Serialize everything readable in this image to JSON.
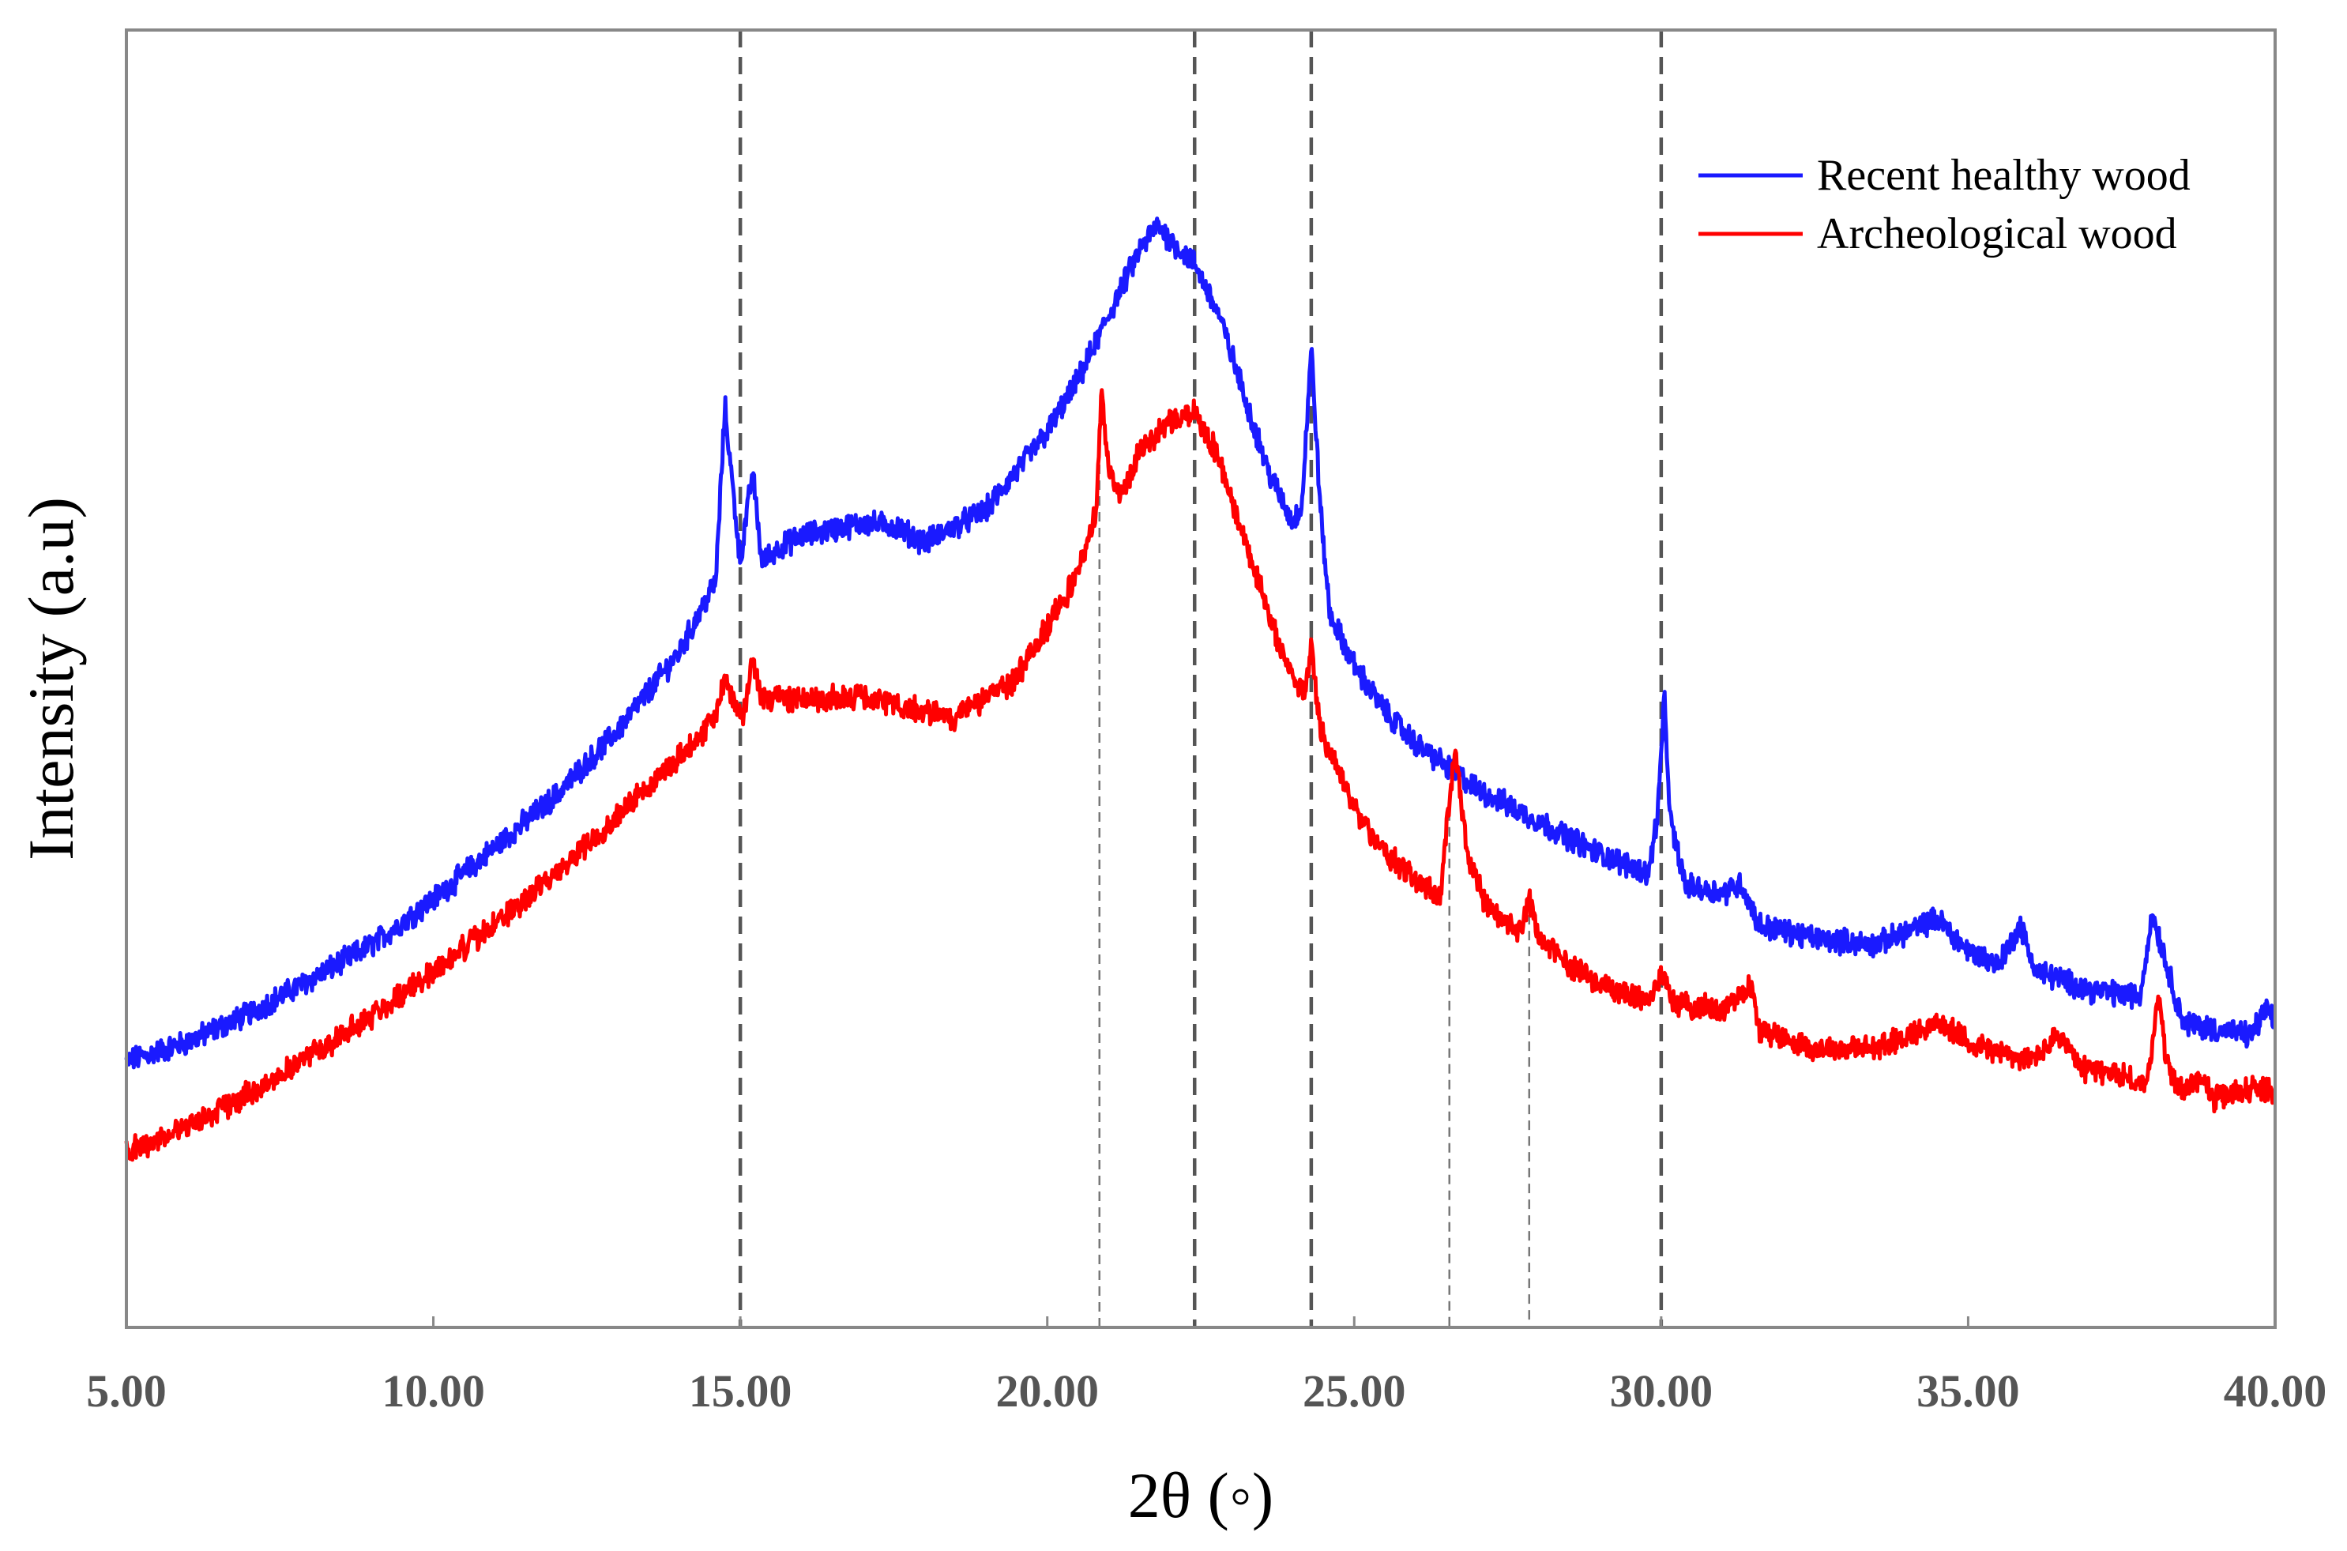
{
  "chart_data": {
    "type": "line",
    "title": "",
    "xlabel": "2θ (◦)",
    "ylabel": "Intensity (a.u)",
    "xlim": [
      5,
      40
    ],
    "ylim": [
      0,
      100
    ],
    "y_ticks_shown": false,
    "grid": false,
    "legend_position": "top-right",
    "x_ticks": [
      "5.00",
      "10.00",
      "15.00",
      "20.00",
      "25.00",
      "30.00",
      "35.00",
      "40.00"
    ],
    "x_tick_values": [
      5,
      10,
      15,
      20,
      25,
      30,
      35,
      40
    ],
    "reference_lines_major": [
      15.0,
      22.4,
      24.3,
      30.0
    ],
    "reference_lines_minor": [
      20.85,
      26.55,
      27.85
    ],
    "series": [
      {
        "name": "Recent healthy wood",
        "color": "#1a1aff",
        "points": [
          [
            5.0,
            20.5
          ],
          [
            6.0,
            22.0
          ],
          [
            7.0,
            24.2
          ],
          [
            8.0,
            26.8
          ],
          [
            9.0,
            29.5
          ],
          [
            10.0,
            33.0
          ],
          [
            11.0,
            37.0
          ],
          [
            12.0,
            41.0
          ],
          [
            13.0,
            46.0
          ],
          [
            14.0,
            52.0
          ],
          [
            14.6,
            57.5
          ],
          [
            14.75,
            71.0
          ],
          [
            14.85,
            66.0
          ],
          [
            15.0,
            59.0
          ],
          [
            15.2,
            66.0
          ],
          [
            15.35,
            59.0
          ],
          [
            15.6,
            60.0
          ],
          [
            16.0,
            61.0
          ],
          [
            17.0,
            62.0
          ],
          [
            17.5,
            61.8
          ],
          [
            18.0,
            60.5
          ],
          [
            19.0,
            63.0
          ],
          [
            20.0,
            69.0
          ],
          [
            20.5,
            73.0
          ],
          [
            21.0,
            78.0
          ],
          [
            21.5,
            83.0
          ],
          [
            21.8,
            85.0
          ],
          [
            22.0,
            83.8
          ],
          [
            22.4,
            82.0
          ],
          [
            22.8,
            78.0
          ],
          [
            23.2,
            72.0
          ],
          [
            23.6,
            66.0
          ],
          [
            24.0,
            62.0
          ],
          [
            24.15,
            63.5
          ],
          [
            24.3,
            75.5
          ],
          [
            24.45,
            63.0
          ],
          [
            24.6,
            55.0
          ],
          [
            25.0,
            51.0
          ],
          [
            25.5,
            47.5
          ],
          [
            26.0,
            45.0
          ],
          [
            27.0,
            41.5
          ],
          [
            28.0,
            39.0
          ],
          [
            29.0,
            36.5
          ],
          [
            29.8,
            35.0
          ],
          [
            29.95,
            40.0
          ],
          [
            30.05,
            48.5
          ],
          [
            30.15,
            39.0
          ],
          [
            30.4,
            34.0
          ],
          [
            31.0,
            33.5
          ],
          [
            31.3,
            34.2
          ],
          [
            31.6,
            31.0
          ],
          [
            32.5,
            30.0
          ],
          [
            33.5,
            29.5
          ],
          [
            34.5,
            31.5
          ],
          [
            35.0,
            29.0
          ],
          [
            35.5,
            28.0
          ],
          [
            35.85,
            31.0
          ],
          [
            36.1,
            27.5
          ],
          [
            37.0,
            26.0
          ],
          [
            37.8,
            25.5
          ],
          [
            38.0,
            32.0
          ],
          [
            38.2,
            28.5
          ],
          [
            38.5,
            23.5
          ],
          [
            39.0,
            23.0
          ],
          [
            39.6,
            22.5
          ],
          [
            39.85,
            24.5
          ],
          [
            40.0,
            23.5
          ]
        ]
      },
      {
        "name": "Archeological wood",
        "color": "#ff0000",
        "points": [
          [
            5.0,
            13.5
          ],
          [
            6.0,
            15.5
          ],
          [
            7.0,
            18.0
          ],
          [
            8.0,
            21.0
          ],
          [
            9.0,
            24.0
          ],
          [
            10.0,
            27.5
          ],
          [
            11.0,
            31.0
          ],
          [
            12.0,
            35.0
          ],
          [
            13.0,
            39.5
          ],
          [
            14.0,
            44.0
          ],
          [
            14.6,
            47.0
          ],
          [
            14.75,
            50.5
          ],
          [
            14.9,
            48.0
          ],
          [
            15.05,
            47.0
          ],
          [
            15.2,
            51.5
          ],
          [
            15.35,
            48.5
          ],
          [
            16.0,
            48.5
          ],
          [
            17.0,
            48.5
          ],
          [
            18.0,
            47.5
          ],
          [
            18.5,
            47.0
          ],
          [
            19.0,
            48.5
          ],
          [
            19.5,
            50.0
          ],
          [
            20.0,
            54.0
          ],
          [
            20.5,
            58.0
          ],
          [
            20.8,
            63.0
          ],
          [
            20.88,
            72.5
          ],
          [
            21.0,
            66.0
          ],
          [
            21.2,
            64.0
          ],
          [
            21.5,
            67.5
          ],
          [
            22.0,
            70.0
          ],
          [
            22.4,
            70.5
          ],
          [
            22.8,
            67.0
          ],
          [
            23.2,
            61.0
          ],
          [
            23.6,
            55.0
          ],
          [
            24.0,
            50.0
          ],
          [
            24.2,
            49.0
          ],
          [
            24.3,
            52.5
          ],
          [
            24.45,
            46.0
          ],
          [
            25.0,
            40.0
          ],
          [
            25.5,
            36.5
          ],
          [
            26.0,
            34.5
          ],
          [
            26.4,
            33.0
          ],
          [
            26.55,
            41.0
          ],
          [
            26.65,
            44.5
          ],
          [
            26.85,
            36.0
          ],
          [
            27.2,
            32.0
          ],
          [
            27.7,
            30.5
          ],
          [
            27.85,
            33.0
          ],
          [
            28.0,
            30.0
          ],
          [
            28.5,
            28.0
          ],
          [
            29.0,
            26.5
          ],
          [
            29.8,
            25.0
          ],
          [
            30.0,
            27.5
          ],
          [
            30.2,
            25.0
          ],
          [
            31.0,
            24.5
          ],
          [
            31.45,
            26.5
          ],
          [
            31.6,
            23.0
          ],
          [
            32.5,
            21.5
          ],
          [
            33.5,
            21.5
          ],
          [
            34.5,
            23.5
          ],
          [
            35.0,
            22.0
          ],
          [
            36.0,
            20.5
          ],
          [
            36.5,
            22.5
          ],
          [
            36.8,
            20.0
          ],
          [
            37.5,
            19.5
          ],
          [
            37.9,
            18.5
          ],
          [
            38.1,
            25.5
          ],
          [
            38.25,
            20.0
          ],
          [
            38.5,
            18.0
          ],
          [
            38.8,
            19.5
          ],
          [
            39.0,
            17.5
          ],
          [
            39.6,
            18.5
          ],
          [
            40.0,
            18.0
          ]
        ]
      }
    ]
  }
}
